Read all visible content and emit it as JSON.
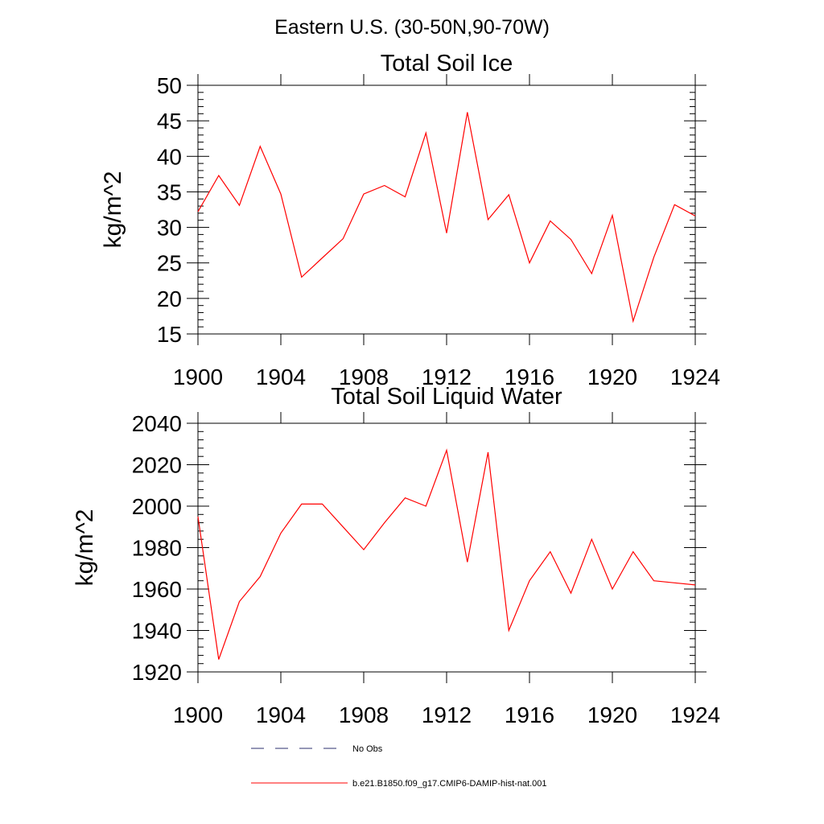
{
  "figure": {
    "main_title": "Eastern U.S. (30-50N,90-70W)"
  },
  "legend": {
    "placement": "bottom-center",
    "entries": [
      {
        "label": "No Obs",
        "color": "#2b2f6e",
        "style": "dashed"
      },
      {
        "label": "b.e21.B1850.f09_g17.CMIP6-DAMIP-hist-nat.001",
        "color": "#ff0000",
        "style": "solid"
      }
    ]
  },
  "chart_data": [
    {
      "type": "line",
      "title": "Total Soil Ice",
      "xlabel": "",
      "ylabel": "kg/m^2",
      "xlim": [
        1900,
        1924
      ],
      "ylim": [
        15,
        50
      ],
      "xticks": [
        1900,
        1904,
        1908,
        1912,
        1916,
        1920,
        1924
      ],
      "yticks": [
        15,
        20,
        25,
        30,
        35,
        40,
        45,
        50
      ],
      "grid": false,
      "series": [
        {
          "name": "b.e21.B1850.f09_g17.CMIP6-DAMIP-hist-nat.001",
          "color": "#ff0000",
          "x": [
            1900,
            1901,
            1902,
            1903,
            1904,
            1905,
            1906,
            1907,
            1908,
            1909,
            1910,
            1911,
            1912,
            1913,
            1914,
            1915,
            1916,
            1917,
            1918,
            1919,
            1920,
            1921,
            1922,
            1923,
            1924
          ],
          "y": [
            32.2,
            37.3,
            33.1,
            41.4,
            34.7,
            23.0,
            25.7,
            28.4,
            34.7,
            35.9,
            34.3,
            43.3,
            29.2,
            46.2,
            31.1,
            34.6,
            25.0,
            30.9,
            28.3,
            23.5,
            31.7,
            16.8,
            25.8,
            33.2,
            31.6
          ]
        }
      ]
    },
    {
      "type": "line",
      "title": "Total Soil Liquid Water",
      "xlabel": "",
      "ylabel": "kg/m^2",
      "xlim": [
        1900,
        1924
      ],
      "ylim": [
        1920,
        2040
      ],
      "xticks": [
        1900,
        1904,
        1908,
        1912,
        1916,
        1920,
        1924
      ],
      "yticks": [
        1920,
        1940,
        1960,
        1980,
        2000,
        2020,
        2040
      ],
      "grid": false,
      "series": [
        {
          "name": "b.e21.B1850.f09_g17.CMIP6-DAMIP-hist-nat.001",
          "color": "#ff0000",
          "x": [
            1900,
            1901,
            1902,
            1903,
            1904,
            1905,
            1906,
            1907,
            1908,
            1909,
            1910,
            1911,
            1912,
            1913,
            1914,
            1915,
            1916,
            1917,
            1918,
            1919,
            1920,
            1921,
            1922,
            1923,
            1924
          ],
          "y": [
            1995,
            1926,
            1954,
            1966,
            1987,
            2001,
            2001,
            1990,
            1979,
            1992,
            2004,
            2000,
            2027,
            1973,
            2026,
            1940,
            1964,
            1978,
            1958,
            1984,
            1960,
            1978,
            1964,
            1963,
            1962
          ]
        }
      ]
    }
  ]
}
